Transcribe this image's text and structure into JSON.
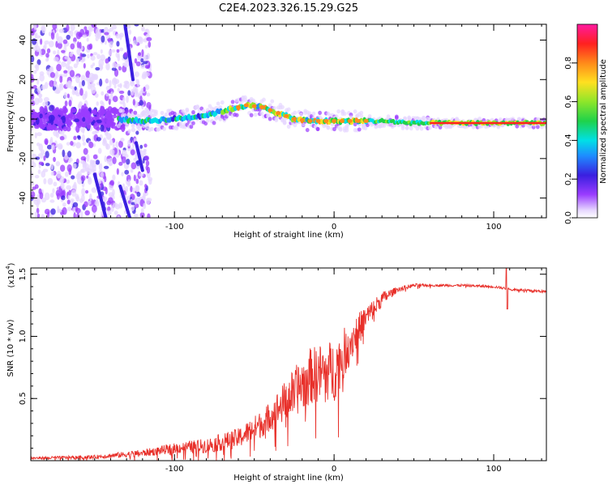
{
  "title": "C2E4.2023.326.15.29.G25",
  "colors": {
    "snr_line": "#e8302a",
    "spectrum_streak": "#3a1fe0",
    "frame": "#000000"
  },
  "chart_data": [
    {
      "type": "heatmap",
      "name": "spectrogram",
      "xlabel": "Height of straight line (km)",
      "ylabel": "Frequency (Hz)",
      "xlim": [
        -190,
        133
      ],
      "ylim": [
        -50,
        48
      ],
      "xticks": [
        -100,
        0,
        100
      ],
      "yticks": [
        -40,
        -20,
        0,
        20,
        40
      ],
      "ridge": {
        "x": [
          -135,
          -120,
          -100,
          -80,
          -65,
          -55,
          -45,
          -35,
          -25,
          -15,
          -5,
          5,
          15,
          30,
          50,
          80,
          110,
          133
        ],
        "y": [
          0,
          -1,
          0,
          2,
          5,
          7,
          6,
          3,
          0,
          -1,
          -1,
          -1,
          -1,
          -1,
          -2,
          -2,
          -2,
          -2
        ]
      },
      "streaks": [
        {
          "x": [
            -131,
            -126
          ],
          "y": [
            48,
            20
          ]
        },
        {
          "x": [
            -134,
            -128
          ],
          "y": [
            -34,
            -50
          ]
        },
        {
          "x": [
            -150,
            -143
          ],
          "y": [
            -28,
            -50
          ]
        },
        {
          "x": [
            -124,
            -120
          ],
          "y": [
            -12,
            -26
          ]
        }
      ],
      "colorbar": {
        "label": "Normalized spectral amplitude",
        "range": [
          0,
          1
        ],
        "ticks": [
          "0.0",
          "0.2",
          "0.4",
          "0.6",
          "0.8"
        ]
      }
    },
    {
      "type": "line",
      "name": "snr",
      "xlabel": "Height of straight line (km)",
      "ylabel": "SNR (10 * v/v)",
      "multiplier_base": "(x10",
      "multiplier_exp": "4",
      "multiplier_close": ")",
      "xlim": [
        -190,
        133
      ],
      "ylim": [
        0,
        1.55
      ],
      "xticks": [
        -100,
        0,
        100
      ],
      "yticks": [
        0.5,
        1.0,
        1.5
      ],
      "ytick_labels": [
        "0.5",
        "1.0",
        "1.5"
      ],
      "trend": {
        "x": [
          -190,
          -150,
          -120,
          -100,
          -80,
          -60,
          -45,
          -35,
          -25,
          -15,
          -5,
          0,
          10,
          20,
          30,
          40,
          50,
          60,
          80,
          100,
          110,
          120,
          133
        ],
        "y": [
          0.02,
          0.03,
          0.06,
          0.1,
          0.12,
          0.18,
          0.3,
          0.42,
          0.55,
          0.68,
          0.72,
          0.72,
          0.95,
          1.15,
          1.3,
          1.38,
          1.41,
          1.41,
          1.41,
          1.4,
          1.38,
          1.37,
          1.36
        ]
      },
      "noise": {
        "x": [
          -190,
          -150,
          -100,
          -80,
          -60,
          -40,
          -20,
          0,
          20,
          40,
          60,
          133
        ],
        "amp": [
          0.01,
          0.015,
          0.04,
          0.06,
          0.08,
          0.12,
          0.22,
          0.25,
          0.1,
          0.02,
          0.01,
          0.01
        ]
      }
    }
  ]
}
